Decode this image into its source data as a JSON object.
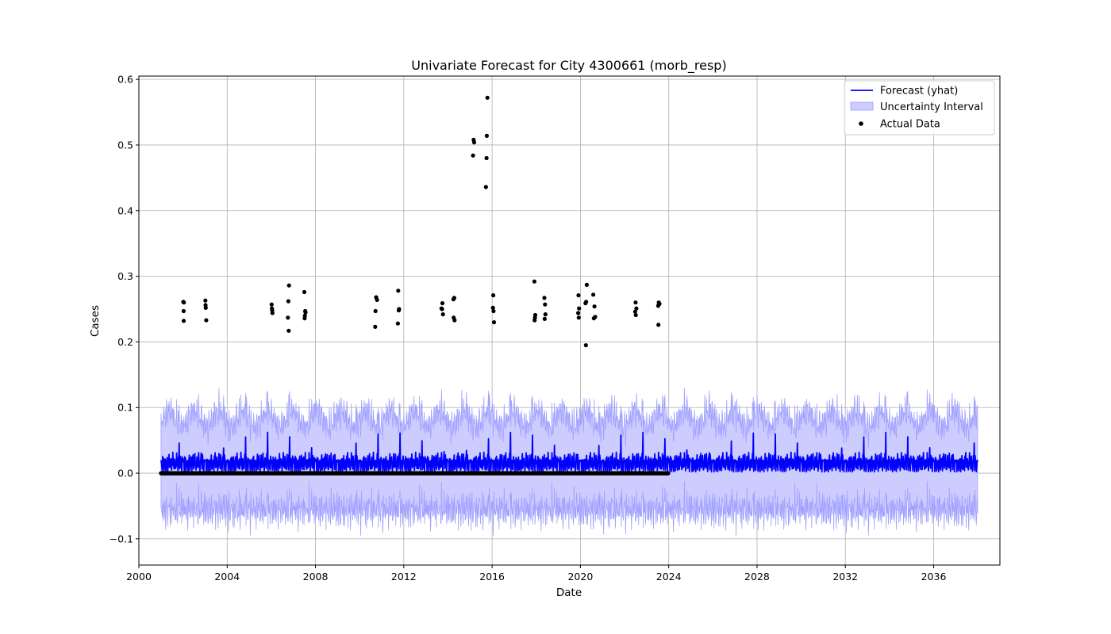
{
  "chart_data": {
    "type": "line",
    "title": "Univariate Forecast for City 4300661 (morb_resp)",
    "xlabel": "Date",
    "ylabel": "Cases",
    "xlim": [
      "2000-01-01",
      "2039-01-01"
    ],
    "ylim": [
      -0.14,
      0.605
    ],
    "x_ticks": [
      "2000",
      "2004",
      "2008",
      "2012",
      "2016",
      "2020",
      "2024",
      "2028",
      "2032",
      "2036"
    ],
    "y_ticks": [
      -0.1,
      0.0,
      0.1,
      0.2,
      0.3,
      0.4,
      0.5,
      0.6
    ],
    "y_tick_labels": [
      "−0.1",
      "0.0",
      "0.1",
      "0.2",
      "0.3",
      "0.4",
      "0.5",
      "0.6"
    ],
    "grid": true,
    "legend_position": "top-right",
    "legend": [
      "Forecast (yhat)",
      "Uncertainty Interval",
      "Actual Data"
    ],
    "colors": {
      "forecast": "#0000ff",
      "interval_fill": "#ccccff",
      "interval_edge": "#9999ff",
      "actual": "#000000",
      "grid": "#b0b0b0"
    },
    "series": [
      {
        "name": "Forecast (yhat)",
        "kind": "line",
        "x_range": [
          "2001-01-01",
          "2038-01-01"
        ],
        "frequency": "weekly",
        "pattern": "yearly seasonal spike",
        "baseline": 0.0,
        "typical_level": 0.02,
        "annual_peak": 0.065
      },
      {
        "name": "Uncertainty Interval",
        "kind": "band",
        "x_range": [
          "2001-01-01",
          "2038-01-01"
        ],
        "typical_upper": 0.09,
        "upper_peak": 0.155,
        "typical_lower": -0.07,
        "lower_min": -0.105
      },
      {
        "name": "Actual Data",
        "kind": "scatter",
        "zero_baseline_range": [
          "2001-01-01",
          "2024-01-01"
        ],
        "zero_value": 0.0,
        "points": [
          [
            "2002-01-05",
            0.261
          ],
          [
            "2002-01-15",
            0.26
          ],
          [
            "2002-01-10",
            0.247
          ],
          [
            "2002-01-12",
            0.232
          ],
          [
            "2003-01-05",
            0.263
          ],
          [
            "2003-01-08",
            0.256
          ],
          [
            "2003-01-12",
            0.252
          ],
          [
            "2003-01-20",
            0.233
          ],
          [
            "2006-01-05",
            0.257
          ],
          [
            "2006-01-10",
            0.251
          ],
          [
            "2006-01-15",
            0.248
          ],
          [
            "2006-01-18",
            0.244
          ],
          [
            "2006-10-20",
            0.286
          ],
          [
            "2006-10-10",
            0.262
          ],
          [
            "2006-10-01",
            0.237
          ],
          [
            "2006-10-15",
            0.217
          ],
          [
            "2007-07-01",
            0.276
          ],
          [
            "2007-07-15",
            0.247
          ],
          [
            "2007-07-20",
            0.245
          ],
          [
            "2007-07-10",
            0.24
          ],
          [
            "2007-07-05",
            0.236
          ],
          [
            "2010-10-01",
            0.268
          ],
          [
            "2010-10-15",
            0.264
          ],
          [
            "2010-09-20",
            0.247
          ],
          [
            "2010-09-15",
            0.223
          ],
          [
            "2011-10-01",
            0.278
          ],
          [
            "2011-10-15",
            0.25
          ],
          [
            "2011-10-10",
            0.248
          ],
          [
            "2011-09-25",
            0.228
          ],
          [
            "2013-10-01",
            0.259
          ],
          [
            "2013-09-15",
            0.251
          ],
          [
            "2013-09-25",
            0.25
          ],
          [
            "2013-10-10",
            0.242
          ],
          [
            "2014-04-15",
            0.267
          ],
          [
            "2014-04-01",
            0.265
          ],
          [
            "2014-04-05",
            0.237
          ],
          [
            "2014-04-20",
            0.233
          ],
          [
            "2015-03-01",
            0.508
          ],
          [
            "2015-03-10",
            0.504
          ],
          [
            "2015-02-20",
            0.484
          ],
          [
            "2015-10-15",
            0.572
          ],
          [
            "2015-10-05",
            0.514
          ],
          [
            "2015-10-01",
            0.48
          ],
          [
            "2015-09-20",
            0.436
          ],
          [
            "2016-01-20",
            0.271
          ],
          [
            "2016-01-15",
            0.252
          ],
          [
            "2016-01-25",
            0.247
          ],
          [
            "2016-02-01",
            0.23
          ],
          [
            "2017-12-01",
            0.292
          ],
          [
            "2017-12-15",
            0.241
          ],
          [
            "2017-12-10",
            0.237
          ],
          [
            "2017-12-05",
            0.233
          ],
          [
            "2018-05-15",
            0.267
          ],
          [
            "2018-05-25",
            0.257
          ],
          [
            "2018-06-01",
            0.242
          ],
          [
            "2018-05-20",
            0.235
          ],
          [
            "2019-12-01",
            0.271
          ],
          [
            "2019-12-10",
            0.251
          ],
          [
            "2019-11-25",
            0.244
          ],
          [
            "2019-12-05",
            0.237
          ],
          [
            "2020-04-15",
            0.287
          ],
          [
            "2020-04-05",
            0.261
          ],
          [
            "2020-03-25",
            0.259
          ],
          [
            "2020-04-01",
            0.195
          ],
          [
            "2020-08-01",
            0.272
          ],
          [
            "2020-08-20",
            0.254
          ],
          [
            "2020-09-01",
            0.238
          ],
          [
            "2020-08-10",
            0.236
          ],
          [
            "2022-07-01",
            0.26
          ],
          [
            "2022-07-15",
            0.251
          ],
          [
            "2022-06-25",
            0.246
          ],
          [
            "2022-07-05",
            0.241
          ],
          [
            "2023-07-20",
            0.26
          ],
          [
            "2023-08-01",
            0.258
          ],
          [
            "2023-07-10",
            0.255
          ],
          [
            "2023-07-15",
            0.226
          ]
        ]
      }
    ]
  }
}
